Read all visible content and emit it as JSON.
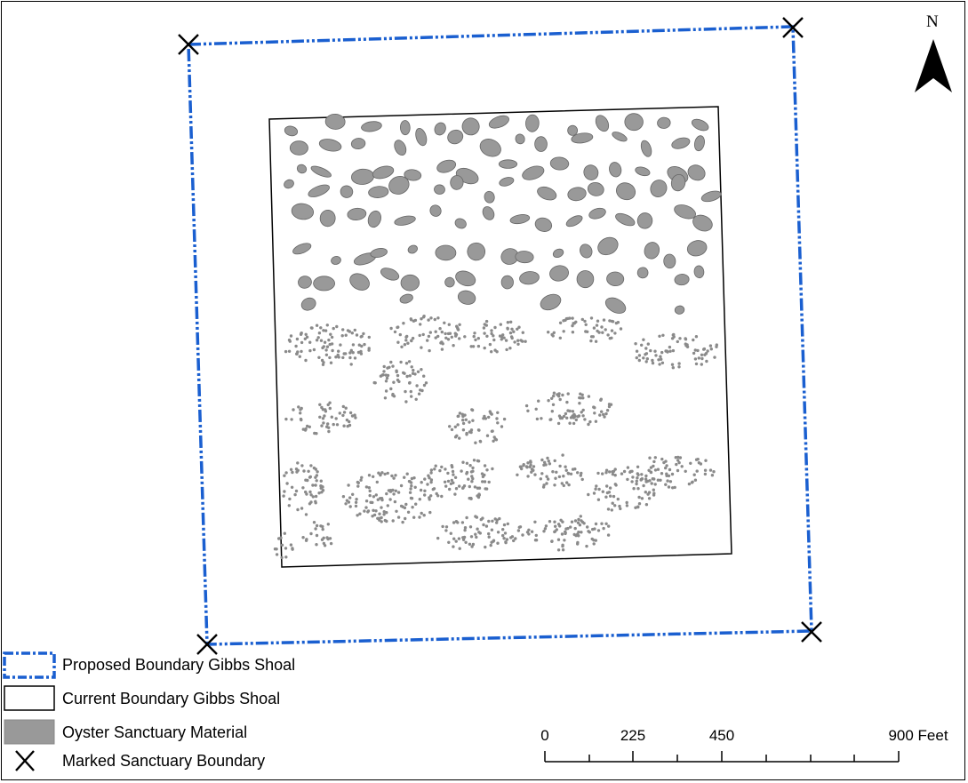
{
  "map": {
    "north_label": "N",
    "colors": {
      "proposed_boundary": "#1a5fd0",
      "current_boundary": "#000000",
      "oyster_fill": "#999999",
      "oyster_stroke": "#666666",
      "marker": "#000000"
    }
  },
  "legend": {
    "items": [
      {
        "label": "Proposed Boundary Gibbs Shoal",
        "symbol": "dash-dot-blue-rectangle"
      },
      {
        "label": "Current Boundary Gibbs Shoal",
        "symbol": "black-outline-rectangle"
      },
      {
        "label": "Oyster Sanctuary Material",
        "symbol": "gray-filled-rectangle"
      },
      {
        "label": "Marked Sanctuary Boundary",
        "symbol": "x-marker"
      }
    ]
  },
  "scale_bar": {
    "ticks": [
      "0",
      "225",
      "450",
      "900 Feet"
    ]
  }
}
